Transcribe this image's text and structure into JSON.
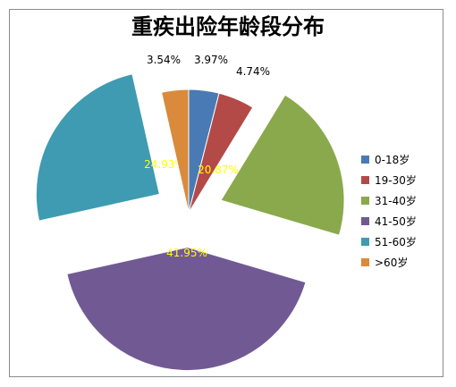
{
  "chart_data": {
    "type": "pie",
    "title": "重疾出险年龄段分布",
    "series": [
      {
        "name": "0-18岁",
        "value": 3.97,
        "label": "3.97%",
        "color": "#4a7ab4"
      },
      {
        "name": "19-30岁",
        "value": 4.74,
        "label": "4.74%",
        "color": "#b34a47"
      },
      {
        "name": "31-40岁",
        "value": 20.87,
        "label": "20.87%",
        "color": "#8aa94c"
      },
      {
        "name": "41-50岁",
        "value": 41.95,
        "label": "41.95%",
        "color": "#715a93"
      },
      {
        "name": "51-60岁",
        "value": 24.93,
        "label": "24.93%",
        "color": "#3f9bb1"
      },
      {
        "name": ">60岁",
        "value": 3.54,
        "label": "3.54%",
        "color": "#da8a3b"
      }
    ],
    "legend_position": "right",
    "exploded": true
  }
}
